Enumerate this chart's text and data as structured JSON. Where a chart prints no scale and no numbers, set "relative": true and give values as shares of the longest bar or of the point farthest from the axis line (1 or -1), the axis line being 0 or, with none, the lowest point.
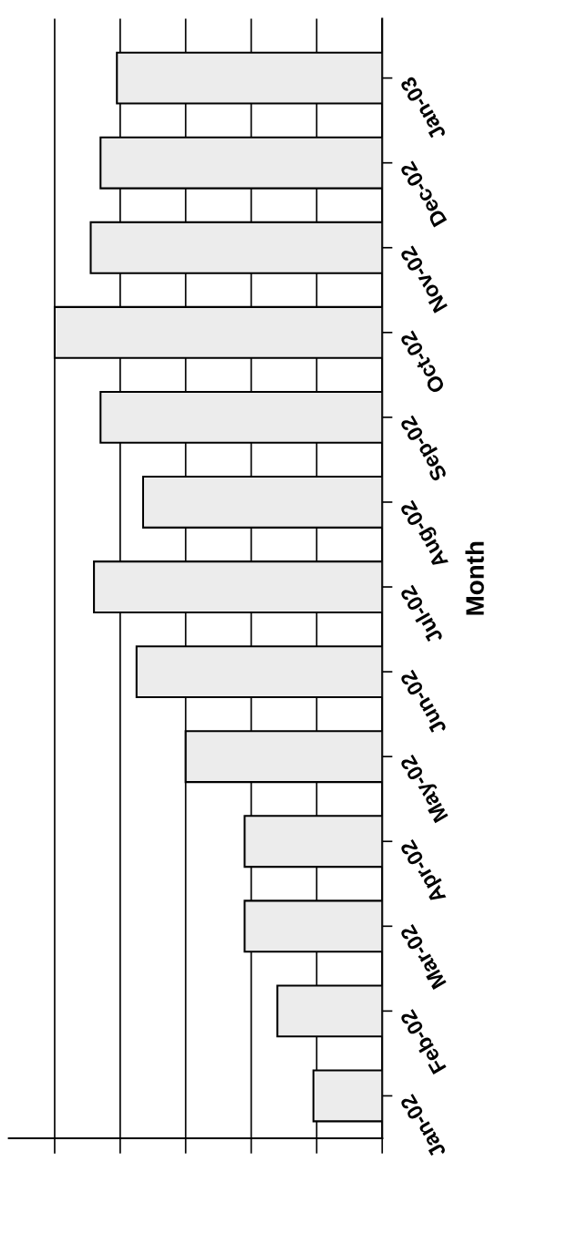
{
  "chart_data": {
    "type": "bar",
    "orientation": "horizontal",
    "relative": true,
    "ylabel": "Month",
    "categories": [
      "Jan-03",
      "Dec-02",
      "Nov-02",
      "Oct-02",
      "Sep-02",
      "Aug-02",
      "Jul-02",
      "Jun-02",
      "May-02",
      "Apr-02",
      "Mar-02",
      "Feb-02",
      "Jan-02"
    ],
    "values": [
      0.81,
      0.86,
      0.89,
      1.0,
      0.86,
      0.73,
      0.88,
      0.75,
      0.6,
      0.42,
      0.42,
      0.32,
      0.21
    ],
    "color": "#ececec",
    "grid": "x",
    "legend": false
  }
}
